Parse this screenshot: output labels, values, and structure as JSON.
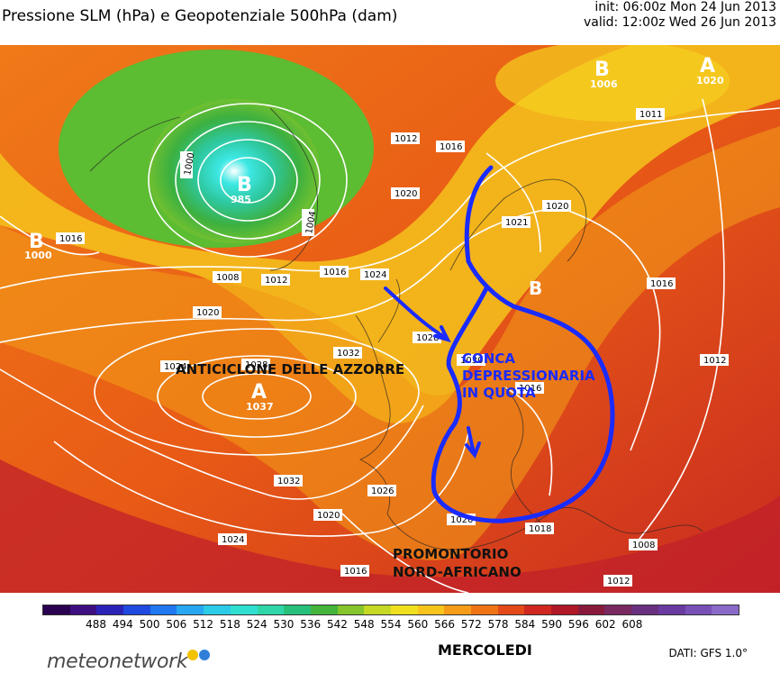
{
  "header": {
    "title": "Pressione SLM (hPa) e Geopotenziale 500hPa (dam)",
    "init": "init: 06:00z Mon 24 Jun 2013",
    "valid": "valid: 12:00z Wed 26 Jun 2013"
  },
  "map": {
    "centers": [
      {
        "symbol": "B",
        "value": "985"
      },
      {
        "symbol": "B",
        "value": "1006"
      },
      {
        "symbol": "B",
        "value": "1000"
      },
      {
        "symbol": "A",
        "value": "1037"
      },
      {
        "symbol": "A",
        "value": "1020"
      },
      {
        "symbol": "B",
        "value": ""
      }
    ],
    "isobar_labels": [
      "1000",
      "1004",
      "1008",
      "1012",
      "1016",
      "1020",
      "1024",
      "1028",
      "1032",
      "1030",
      "1026",
      "1018",
      "1021",
      "1011",
      "1006",
      "1008"
    ],
    "annotations": {
      "azores": "ANTICICLONE DELLE AZZORRE",
      "trough": [
        "CONCA",
        "DEPRESSIONARIA",
        "IN QUOTA"
      ],
      "ridge": [
        "PROMONTORIO",
        "NORD-AFRICANO"
      ]
    },
    "annotation_color": "#1a2bff"
  },
  "colorbar": {
    "labels": [
      "488",
      "494",
      "500",
      "506",
      "512",
      "518",
      "524",
      "530",
      "536",
      "542",
      "548",
      "554",
      "560",
      "566",
      "572",
      "578",
      "584",
      "590",
      "596",
      "602",
      "608"
    ],
    "colors": [
      "#2a0050",
      "#3d0f80",
      "#2b22b8",
      "#1f49e0",
      "#1f78f0",
      "#27a6f2",
      "#2ccbe8",
      "#2fe0d0",
      "#2ed6a8",
      "#27c07a",
      "#44b43a",
      "#86c52b",
      "#c5d824",
      "#f0e020",
      "#f8c41c",
      "#f69c18",
      "#f07416",
      "#e4491a",
      "#d02820",
      "#b01828",
      "#8a1a3c",
      "#7a2860",
      "#6a3080",
      "#6a3aa0",
      "#7850b8",
      "#8a6ac8"
    ]
  },
  "footer": {
    "brand": "meteonetwork",
    "day": "MERCOLEDI",
    "source": "DATI: GFS 1.0°",
    "dot_colors": [
      "#f2c200",
      "#2f7fd8"
    ]
  }
}
